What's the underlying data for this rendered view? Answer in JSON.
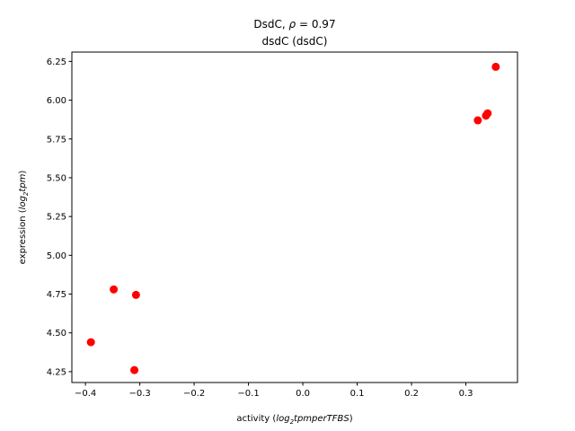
{
  "chart_data": {
    "type": "scatter",
    "title_line1": "DsdC, ",
    "title_rho": "ρ",
    "title_value": " = 0.97",
    "title_line2": "dsdC (dsdC)",
    "xlabel_prefix": "activity (",
    "xlabel_math": "log",
    "xlabel_sub": "2",
    "xlabel_math_rest": "tpmperTFBS",
    "xlabel_suffix": ")",
    "ylabel_prefix": "expression (",
    "ylabel_math": "log",
    "ylabel_sub": "2",
    "ylabel_math_rest": "tpm",
    "ylabel_suffix": ")",
    "xlim": [
      -0.425,
      0.395
    ],
    "ylim": [
      4.18,
      6.31
    ],
    "xticks": [
      -0.4,
      -0.3,
      -0.2,
      -0.1,
      0.0,
      0.1,
      0.2,
      0.3
    ],
    "xtick_labels": [
      "−0.4",
      "−0.3",
      "−0.2",
      "−0.1",
      "0.0",
      "0.1",
      "0.2",
      "0.3"
    ],
    "yticks": [
      4.25,
      4.5,
      4.75,
      5.0,
      5.25,
      5.5,
      5.75,
      6.0,
      6.25
    ],
    "ytick_labels": [
      "4.25",
      "4.50",
      "4.75",
      "5.00",
      "5.25",
      "5.50",
      "5.75",
      "6.00",
      "6.25"
    ],
    "grid": false,
    "marker_color": "#ff0000",
    "points": [
      {
        "x": -0.39,
        "y": 4.44
      },
      {
        "x": -0.348,
        "y": 4.78
      },
      {
        "x": -0.307,
        "y": 4.745
      },
      {
        "x": -0.31,
        "y": 4.26
      },
      {
        "x": 0.322,
        "y": 5.87
      },
      {
        "x": 0.337,
        "y": 5.9
      },
      {
        "x": 0.34,
        "y": 5.915
      },
      {
        "x": 0.355,
        "y": 6.215
      }
    ]
  }
}
